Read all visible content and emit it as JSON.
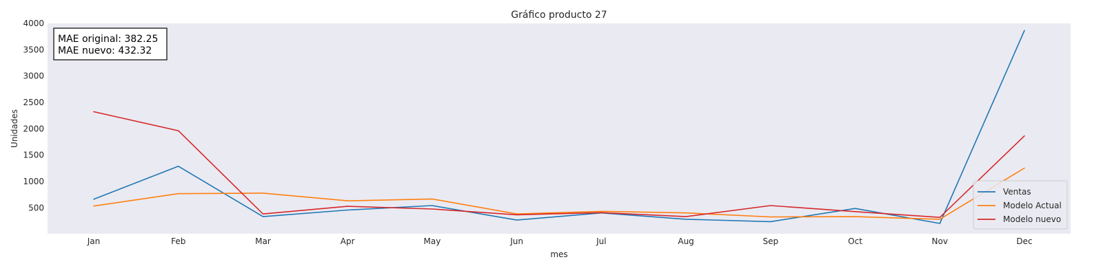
{
  "chart_data": {
    "type": "line",
    "title": "Gráfico producto 27",
    "xlabel": "mes",
    "ylabel": "Unidades",
    "categories": [
      "Jan",
      "Feb",
      "Mar",
      "Apr",
      "May",
      "Jun",
      "Jul",
      "Aug",
      "Sep",
      "Oct",
      "Nov",
      "Dec"
    ],
    "yticks": [
      500,
      1000,
      1500,
      2000,
      2500,
      3000,
      3500,
      4000
    ],
    "ylim": [
      10,
      4000
    ],
    "grid": false,
    "background_color": "#eaeaf2",
    "series": [
      {
        "name": "Ventas",
        "color": "#1f77b4",
        "values": [
          665,
          1290,
          335,
          460,
          545,
          270,
          405,
          285,
          240,
          490,
          205,
          3865
        ]
      },
      {
        "name": "Modelo Actual",
        "color": "#ff7f0e",
        "values": [
          535,
          770,
          780,
          635,
          670,
          385,
          435,
          405,
          330,
          335,
          285,
          1255
        ]
      },
      {
        "name": "Modelo nuevo",
        "color": "#d62728",
        "values": [
          2325,
          1965,
          385,
          530,
          480,
          370,
          410,
          335,
          545,
          430,
          320,
          1865
        ]
      }
    ],
    "legend": {
      "placement": "lower-right",
      "entries": [
        "Ventas",
        "Modelo Actual",
        "Modelo nuevo"
      ]
    },
    "annotation": {
      "placement": "top-left",
      "lines": [
        "MAE original: 382.25",
        "MAE nuevo: 432.32"
      ]
    }
  }
}
